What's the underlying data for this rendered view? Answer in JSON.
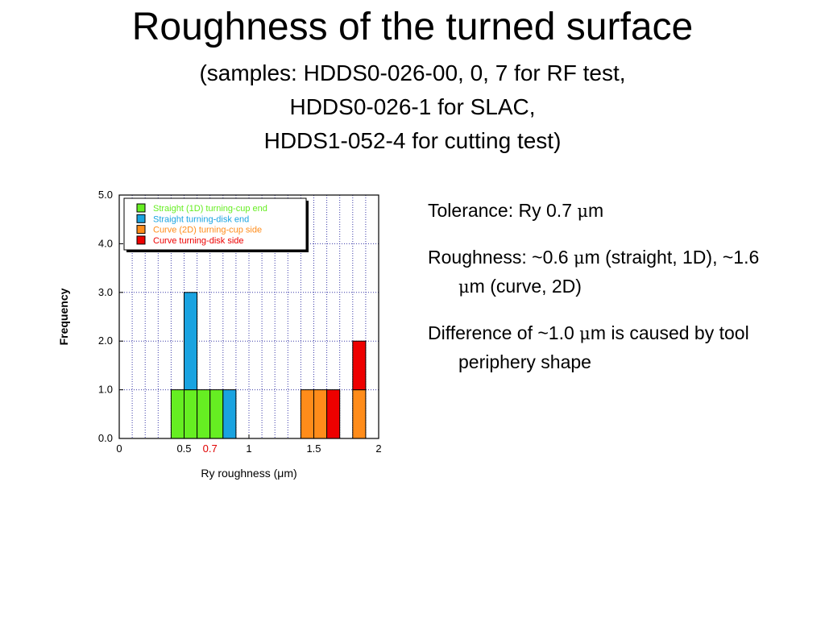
{
  "slide": {
    "title": "Roughness of the turned surface",
    "subtitle_lines": [
      "(samples: HDDS0-026-00, 0, 7 for RF test,",
      "HDDS0-026-1 for SLAC,",
      "HDDS1-052-4 for cutting test)"
    ]
  },
  "notes": [
    {
      "before": "Tolerance: Ry 0.7 ",
      "mu": "μ",
      "after": "m"
    },
    {
      "before": "Roughness: ~0.6 ",
      "mu": "μ",
      "middle": "m (straight, 1D), ~1.6 ",
      "mu2": "μ",
      "after": "m (curve, 2D)"
    },
    {
      "before": "Difference of ~1.0 ",
      "mu": "μ",
      "after": "m is caused by tool periphery shape"
    }
  ],
  "chart_data": {
    "type": "bar",
    "stacked": true,
    "xlabel": "Ry roughness (μm)",
    "ylabel": "Frequency",
    "xlim": [
      0,
      2
    ],
    "ylim": [
      0,
      5
    ],
    "x_ticks": [
      "0",
      "0.5",
      "0.7",
      "1",
      "1.5",
      "2"
    ],
    "x_tick_values": [
      0,
      0.5,
      0.7,
      1,
      1.5,
      2
    ],
    "highlight_tick": "0.7",
    "highlight_color": "#e00000",
    "y_ticks": [
      "0.0",
      "1.0",
      "2.0",
      "3.0",
      "4.0",
      "5.0"
    ],
    "y_tick_values": [
      0,
      1,
      2,
      3,
      4,
      5
    ],
    "bin_width": 0.1,
    "grid": true,
    "legend_position": "top-left",
    "series": [
      {
        "name": "Straight (1D) turning-cup end",
        "color": "#66ee22",
        "bins": [
          {
            "x": 0.4,
            "value": 1
          },
          {
            "x": 0.5,
            "value": 1
          },
          {
            "x": 0.6,
            "value": 1
          },
          {
            "x": 0.7,
            "value": 1
          }
        ]
      },
      {
        "name": "Straight turning-disk end",
        "color": "#1aa3e0",
        "bins": [
          {
            "x": 0.5,
            "value": 2
          },
          {
            "x": 0.8,
            "value": 1
          }
        ]
      },
      {
        "name": "Curve (2D) turning-cup side",
        "color": "#ff8c1a",
        "bins": [
          {
            "x": 1.4,
            "value": 1
          },
          {
            "x": 1.5,
            "value": 1
          },
          {
            "x": 1.8,
            "value": 1
          }
        ]
      },
      {
        "name": "Curve turning-disk side",
        "color": "#ee0000",
        "bins": [
          {
            "x": 1.6,
            "value": 1
          },
          {
            "x": 1.8,
            "value": 1
          }
        ]
      }
    ]
  }
}
